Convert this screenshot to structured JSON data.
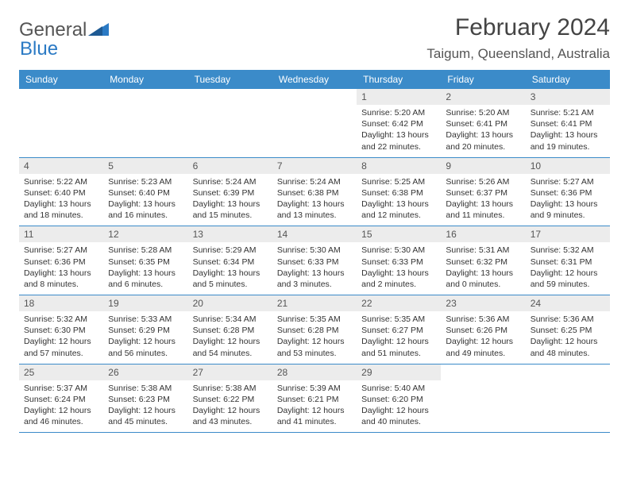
{
  "logo": {
    "word1": "General",
    "word2": "Blue",
    "shape_color": "#2b7ac4",
    "text_color": "#555"
  },
  "title": {
    "month": "February 2024",
    "location": "Taigum, Queensland, Australia"
  },
  "colors": {
    "header_bg": "#3b8bc9",
    "daynum_bg": "#ececec",
    "border": "#3b8bc9"
  },
  "day_labels": [
    "Sunday",
    "Monday",
    "Tuesday",
    "Wednesday",
    "Thursday",
    "Friday",
    "Saturday"
  ],
  "weeks": [
    [
      {
        "empty": true
      },
      {
        "empty": true
      },
      {
        "empty": true
      },
      {
        "empty": true
      },
      {
        "num": "1",
        "sunrise": "Sunrise: 5:20 AM",
        "sunset": "Sunset: 6:42 PM",
        "day1": "Daylight: 13 hours",
        "day2": "and 22 minutes."
      },
      {
        "num": "2",
        "sunrise": "Sunrise: 5:20 AM",
        "sunset": "Sunset: 6:41 PM",
        "day1": "Daylight: 13 hours",
        "day2": "and 20 minutes."
      },
      {
        "num": "3",
        "sunrise": "Sunrise: 5:21 AM",
        "sunset": "Sunset: 6:41 PM",
        "day1": "Daylight: 13 hours",
        "day2": "and 19 minutes."
      }
    ],
    [
      {
        "num": "4",
        "sunrise": "Sunrise: 5:22 AM",
        "sunset": "Sunset: 6:40 PM",
        "day1": "Daylight: 13 hours",
        "day2": "and 18 minutes."
      },
      {
        "num": "5",
        "sunrise": "Sunrise: 5:23 AM",
        "sunset": "Sunset: 6:40 PM",
        "day1": "Daylight: 13 hours",
        "day2": "and 16 minutes."
      },
      {
        "num": "6",
        "sunrise": "Sunrise: 5:24 AM",
        "sunset": "Sunset: 6:39 PM",
        "day1": "Daylight: 13 hours",
        "day2": "and 15 minutes."
      },
      {
        "num": "7",
        "sunrise": "Sunrise: 5:24 AM",
        "sunset": "Sunset: 6:38 PM",
        "day1": "Daylight: 13 hours",
        "day2": "and 13 minutes."
      },
      {
        "num": "8",
        "sunrise": "Sunrise: 5:25 AM",
        "sunset": "Sunset: 6:38 PM",
        "day1": "Daylight: 13 hours",
        "day2": "and 12 minutes."
      },
      {
        "num": "9",
        "sunrise": "Sunrise: 5:26 AM",
        "sunset": "Sunset: 6:37 PM",
        "day1": "Daylight: 13 hours",
        "day2": "and 11 minutes."
      },
      {
        "num": "10",
        "sunrise": "Sunrise: 5:27 AM",
        "sunset": "Sunset: 6:36 PM",
        "day1": "Daylight: 13 hours",
        "day2": "and 9 minutes."
      }
    ],
    [
      {
        "num": "11",
        "sunrise": "Sunrise: 5:27 AM",
        "sunset": "Sunset: 6:36 PM",
        "day1": "Daylight: 13 hours",
        "day2": "and 8 minutes."
      },
      {
        "num": "12",
        "sunrise": "Sunrise: 5:28 AM",
        "sunset": "Sunset: 6:35 PM",
        "day1": "Daylight: 13 hours",
        "day2": "and 6 minutes."
      },
      {
        "num": "13",
        "sunrise": "Sunrise: 5:29 AM",
        "sunset": "Sunset: 6:34 PM",
        "day1": "Daylight: 13 hours",
        "day2": "and 5 minutes."
      },
      {
        "num": "14",
        "sunrise": "Sunrise: 5:30 AM",
        "sunset": "Sunset: 6:33 PM",
        "day1": "Daylight: 13 hours",
        "day2": "and 3 minutes."
      },
      {
        "num": "15",
        "sunrise": "Sunrise: 5:30 AM",
        "sunset": "Sunset: 6:33 PM",
        "day1": "Daylight: 13 hours",
        "day2": "and 2 minutes."
      },
      {
        "num": "16",
        "sunrise": "Sunrise: 5:31 AM",
        "sunset": "Sunset: 6:32 PM",
        "day1": "Daylight: 13 hours",
        "day2": "and 0 minutes."
      },
      {
        "num": "17",
        "sunrise": "Sunrise: 5:32 AM",
        "sunset": "Sunset: 6:31 PM",
        "day1": "Daylight: 12 hours",
        "day2": "and 59 minutes."
      }
    ],
    [
      {
        "num": "18",
        "sunrise": "Sunrise: 5:32 AM",
        "sunset": "Sunset: 6:30 PM",
        "day1": "Daylight: 12 hours",
        "day2": "and 57 minutes."
      },
      {
        "num": "19",
        "sunrise": "Sunrise: 5:33 AM",
        "sunset": "Sunset: 6:29 PM",
        "day1": "Daylight: 12 hours",
        "day2": "and 56 minutes."
      },
      {
        "num": "20",
        "sunrise": "Sunrise: 5:34 AM",
        "sunset": "Sunset: 6:28 PM",
        "day1": "Daylight: 12 hours",
        "day2": "and 54 minutes."
      },
      {
        "num": "21",
        "sunrise": "Sunrise: 5:35 AM",
        "sunset": "Sunset: 6:28 PM",
        "day1": "Daylight: 12 hours",
        "day2": "and 53 minutes."
      },
      {
        "num": "22",
        "sunrise": "Sunrise: 5:35 AM",
        "sunset": "Sunset: 6:27 PM",
        "day1": "Daylight: 12 hours",
        "day2": "and 51 minutes."
      },
      {
        "num": "23",
        "sunrise": "Sunrise: 5:36 AM",
        "sunset": "Sunset: 6:26 PM",
        "day1": "Daylight: 12 hours",
        "day2": "and 49 minutes."
      },
      {
        "num": "24",
        "sunrise": "Sunrise: 5:36 AM",
        "sunset": "Sunset: 6:25 PM",
        "day1": "Daylight: 12 hours",
        "day2": "and 48 minutes."
      }
    ],
    [
      {
        "num": "25",
        "sunrise": "Sunrise: 5:37 AM",
        "sunset": "Sunset: 6:24 PM",
        "day1": "Daylight: 12 hours",
        "day2": "and 46 minutes."
      },
      {
        "num": "26",
        "sunrise": "Sunrise: 5:38 AM",
        "sunset": "Sunset: 6:23 PM",
        "day1": "Daylight: 12 hours",
        "day2": "and 45 minutes."
      },
      {
        "num": "27",
        "sunrise": "Sunrise: 5:38 AM",
        "sunset": "Sunset: 6:22 PM",
        "day1": "Daylight: 12 hours",
        "day2": "and 43 minutes."
      },
      {
        "num": "28",
        "sunrise": "Sunrise: 5:39 AM",
        "sunset": "Sunset: 6:21 PM",
        "day1": "Daylight: 12 hours",
        "day2": "and 41 minutes."
      },
      {
        "num": "29",
        "sunrise": "Sunrise: 5:40 AM",
        "sunset": "Sunset: 6:20 PM",
        "day1": "Daylight: 12 hours",
        "day2": "and 40 minutes."
      },
      {
        "empty": true
      },
      {
        "empty": true
      }
    ]
  ]
}
